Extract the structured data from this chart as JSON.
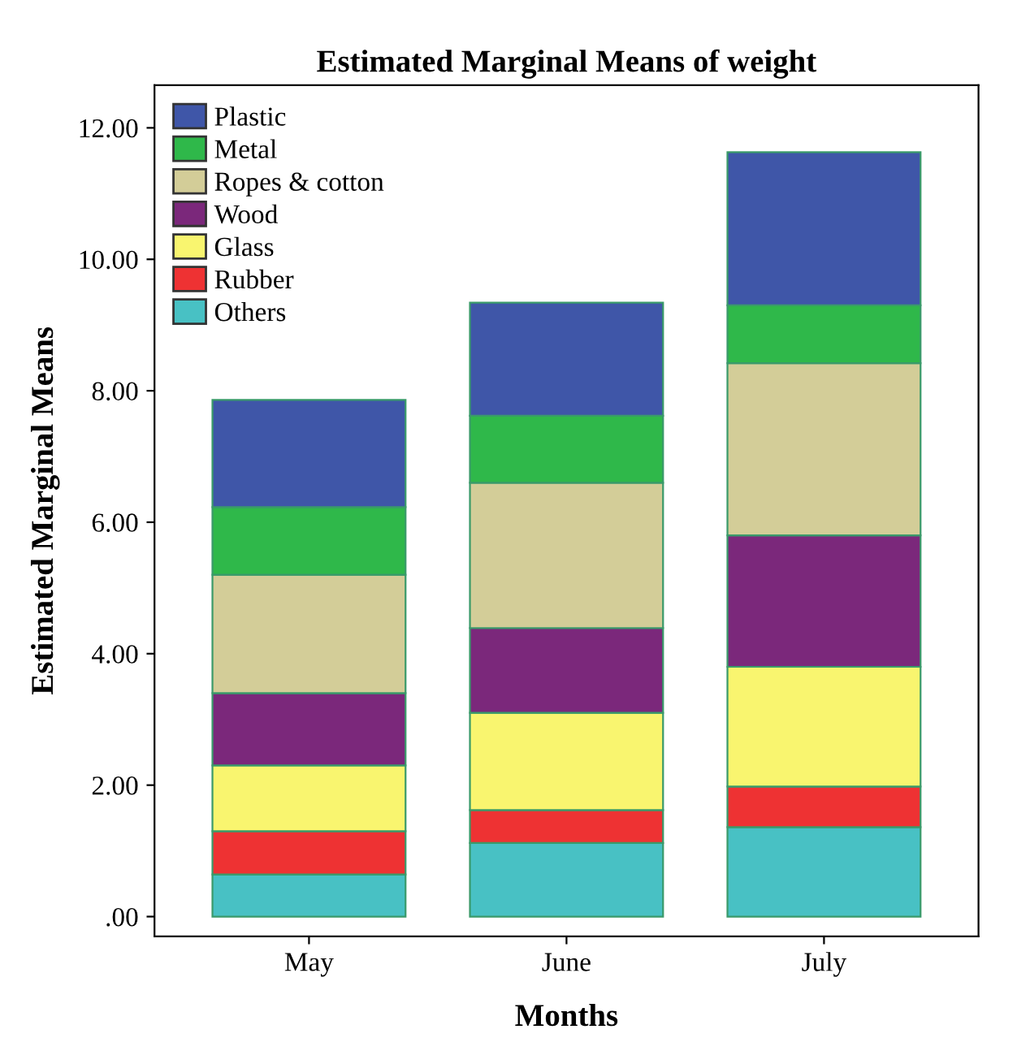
{
  "chart_data": {
    "type": "bar",
    "stacked": true,
    "title": "Estimated Marginal Means of weight",
    "xlabel": "Months",
    "ylabel": "Estimated Marginal Means",
    "categories": [
      "May",
      "June",
      "July"
    ],
    "series": [
      {
        "name": "Others",
        "color": "#48c1c4",
        "values": [
          0.64,
          1.12,
          1.36
        ]
      },
      {
        "name": "Rubber",
        "color": "#ee3233",
        "values": [
          0.66,
          0.5,
          0.62
        ]
      },
      {
        "name": "Glass",
        "color": "#f9f56f",
        "values": [
          1.0,
          1.48,
          1.82
        ]
      },
      {
        "name": "Wood",
        "color": "#7b287b",
        "values": [
          1.1,
          1.29,
          2.0
        ]
      },
      {
        "name": "Ropes & cotton",
        "color": "#d3cd98",
        "values": [
          1.8,
          2.21,
          2.62
        ]
      },
      {
        "name": "Metal",
        "color": "#2fb84a",
        "values": [
          1.03,
          1.02,
          0.88
        ]
      },
      {
        "name": "Plastic",
        "color": "#3f56a8",
        "values": [
          1.63,
          1.72,
          2.33
        ]
      }
    ],
    "ylim": [
      -0.3,
      12.65
    ],
    "yticks": [
      {
        "value": 0,
        "label": ".00"
      },
      {
        "value": 2,
        "label": "2.00"
      },
      {
        "value": 4,
        "label": "4.00"
      },
      {
        "value": 6,
        "label": "6.00"
      },
      {
        "value": 8,
        "label": "8.00"
      },
      {
        "value": 10,
        "label": "10.00"
      },
      {
        "value": 12,
        "label": "12.00"
      }
    ],
    "grid": false,
    "legend": "top left"
  }
}
